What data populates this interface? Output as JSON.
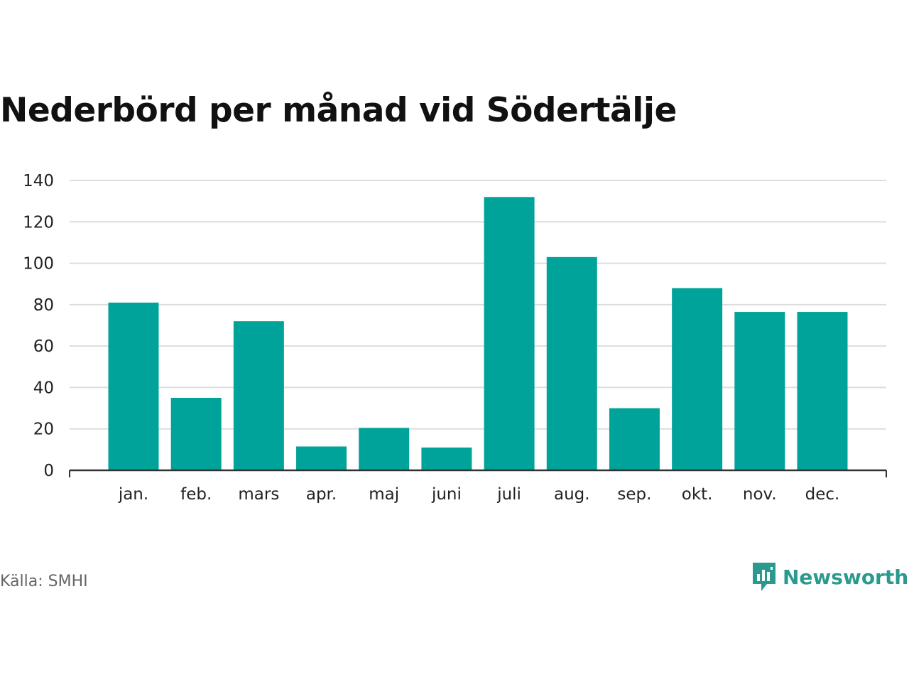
{
  "title": "Nederbörd per månad vid Södertälje",
  "source": "Källa: SMHI",
  "brand": {
    "name": "Newsworthy",
    "icon": "chart-speech-bubble-icon",
    "color": "#2a9a8e"
  },
  "chart_data": {
    "type": "bar",
    "title": "Nederbörd per månad vid Södertälje",
    "categories": [
      "jan.",
      "feb.",
      "mars",
      "apr.",
      "maj",
      "juni",
      "juli",
      "aug.",
      "sep.",
      "okt.",
      "nov.",
      "dec."
    ],
    "values": [
      81,
      35,
      72,
      11.5,
      20.5,
      11,
      132,
      103,
      30,
      88,
      76.5,
      76.5
    ],
    "ylim": [
      0,
      140
    ],
    "yticks": [
      0,
      20,
      40,
      60,
      80,
      100,
      120,
      140
    ],
    "grid": true,
    "bar_color": "#00a39a",
    "xlabel": "",
    "ylabel": ""
  }
}
